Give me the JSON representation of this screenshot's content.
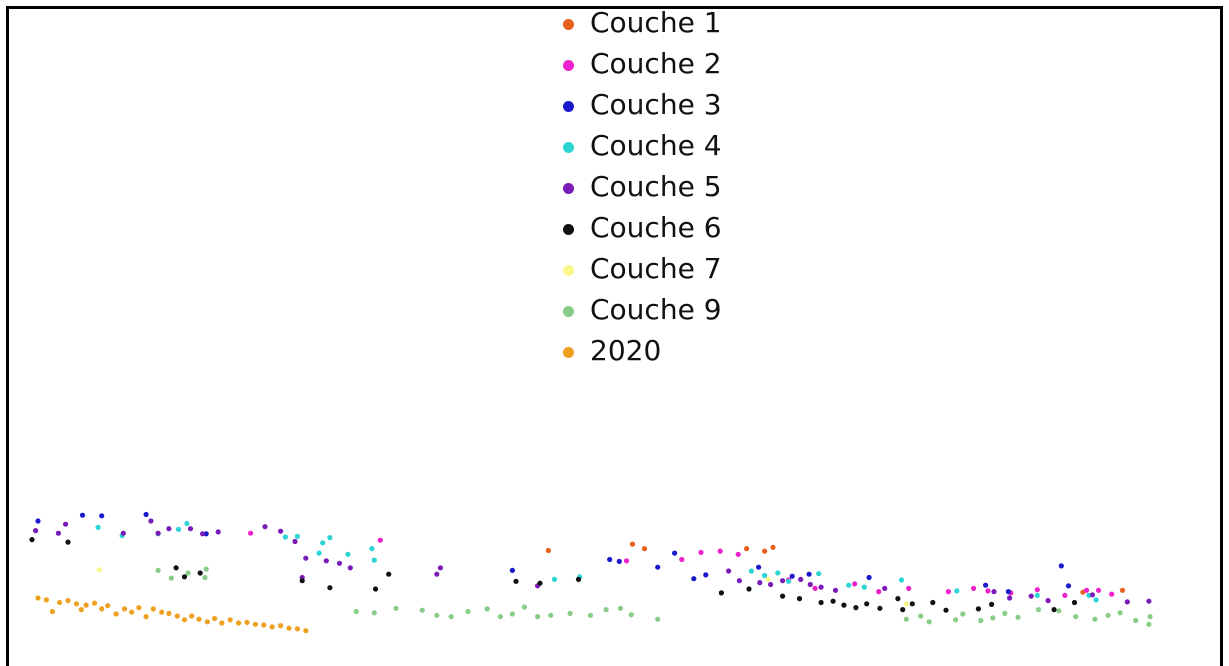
{
  "chart_data": {
    "type": "scatter",
    "title": "",
    "xlabel": "",
    "ylabel": "",
    "grid": false,
    "axes_visible": false,
    "legend_placement": "top-center",
    "x_range": [
      0,
      100
    ],
    "y_range": [
      0,
      100
    ],
    "series": [
      {
        "name": "Couche 1",
        "color": "#E8601C",
        "points": [
          [
            44.5,
            15.5
          ],
          [
            51.5,
            16.5
          ],
          [
            52.5,
            15.8
          ],
          [
            61,
            15.8
          ],
          [
            62.5,
            15.4
          ],
          [
            63.2,
            16.0
          ],
          [
            89.0,
            9.0
          ],
          [
            92.3,
            9.3
          ]
        ]
      },
      {
        "name": "Couche 2",
        "color": "#EE22CC",
        "points": [
          [
            19.7,
            18.2
          ],
          [
            30.5,
            17.1
          ],
          [
            51.0,
            13.9
          ],
          [
            55.6,
            14.1
          ],
          [
            57.2,
            15.2
          ],
          [
            58.8,
            15.4
          ],
          [
            60.3,
            14.9
          ],
          [
            64.5,
            10.9
          ],
          [
            66.7,
            9.6
          ],
          [
            70.0,
            10.3
          ],
          [
            72.0,
            9.1
          ],
          [
            74.5,
            9.6
          ],
          [
            77.8,
            9.1
          ],
          [
            79.9,
            9.6
          ],
          [
            81.1,
            9.2
          ],
          [
            83.0,
            8.9
          ],
          [
            85.2,
            9.4
          ],
          [
            87.5,
            8.5
          ],
          [
            89.3,
            9.3
          ],
          [
            90.3,
            9.3
          ],
          [
            91.4,
            8.7
          ]
        ]
      },
      {
        "name": "Couche 3",
        "color": "#1A1ACC",
        "points": [
          [
            2.0,
            20.1
          ],
          [
            5.7,
            21.0
          ],
          [
            7.3,
            20.9
          ],
          [
            11.0,
            21.1
          ],
          [
            16.0,
            18.1
          ],
          [
            41.5,
            12.4
          ],
          [
            49.6,
            14.1
          ],
          [
            50.4,
            13.8
          ],
          [
            53.6,
            12.9
          ],
          [
            55.0,
            15.1
          ],
          [
            56.6,
            11.1
          ],
          [
            57.6,
            11.7
          ],
          [
            62.0,
            12.9
          ],
          [
            64.8,
            11.5
          ],
          [
            66.2,
            11.8
          ],
          [
            71.2,
            11.3
          ],
          [
            80.9,
            10.1
          ],
          [
            82.8,
            9.1
          ],
          [
            87.2,
            13.1
          ],
          [
            87.8,
            10.0
          ]
        ]
      },
      {
        "name": "Couche 4",
        "color": "#2DD4D4",
        "points": [
          [
            7.0,
            19.1
          ],
          [
            9.0,
            17.8
          ],
          [
            12.0,
            18.1
          ],
          [
            13.7,
            18.8
          ],
          [
            14.4,
            19.7
          ],
          [
            22.6,
            17.6
          ],
          [
            23.6,
            17.7
          ],
          [
            25.7,
            16.7
          ],
          [
            26.3,
            17.5
          ],
          [
            25.4,
            15.1
          ],
          [
            27.8,
            14.9
          ],
          [
            29.8,
            15.8
          ],
          [
            30.0,
            14.0
          ],
          [
            45.0,
            11.0
          ],
          [
            47.1,
            11.4
          ],
          [
            61.4,
            12.3
          ],
          [
            62.5,
            11.6
          ],
          [
            63.6,
            12.0
          ],
          [
            64.5,
            10.7
          ],
          [
            67.0,
            11.9
          ],
          [
            69.5,
            10.1
          ],
          [
            70.8,
            9.8
          ],
          [
            73.9,
            10.9
          ],
          [
            78.5,
            9.2
          ],
          [
            85.2,
            8.5
          ],
          [
            89.5,
            8.5
          ],
          [
            90.1,
            7.8
          ]
        ]
      },
      {
        "name": "Couche 5",
        "color": "#7A1AB8",
        "points": [
          [
            1.8,
            18.6
          ],
          [
            3.7,
            18.2
          ],
          [
            4.3,
            19.6
          ],
          [
            9.1,
            18.2
          ],
          [
            11.4,
            20.1
          ],
          [
            12.0,
            18.2
          ],
          [
            12.9,
            18.9
          ],
          [
            14.7,
            18.9
          ],
          [
            15.7,
            18.1
          ],
          [
            17.0,
            18.4
          ],
          [
            20.9,
            19.2
          ],
          [
            22.2,
            18.5
          ],
          [
            23.4,
            16.9
          ],
          [
            24.3,
            14.3
          ],
          [
            26.0,
            13.9
          ],
          [
            27.1,
            13.5
          ],
          [
            28.0,
            12.8
          ],
          [
            24.0,
            11.3
          ],
          [
            35.2,
            11.8
          ],
          [
            35.5,
            12.8
          ],
          [
            43.6,
            10.0
          ],
          [
            59.5,
            12.3
          ],
          [
            60.4,
            10.8
          ],
          [
            62.1,
            10.5
          ],
          [
            63.0,
            10.2
          ],
          [
            64.0,
            10.8
          ],
          [
            65.5,
            11.0
          ],
          [
            66.3,
            10.2
          ],
          [
            67.2,
            9.8
          ],
          [
            68.4,
            9.3
          ],
          [
            72.5,
            9.6
          ],
          [
            81.6,
            9.1
          ],
          [
            82.9,
            8.1
          ],
          [
            84.7,
            8.4
          ],
          [
            86.1,
            7.7
          ],
          [
            89.8,
            8.6
          ],
          [
            92.7,
            7.5
          ],
          [
            94.5,
            7.6
          ]
        ]
      },
      {
        "name": "Couche 6",
        "color": "#111111",
        "points": [
          [
            1.5,
            17.2
          ],
          [
            4.5,
            16.8
          ],
          [
            13.5,
            12.8
          ],
          [
            14.2,
            11.4
          ],
          [
            15.5,
            12.0
          ],
          [
            24.0,
            10.8
          ],
          [
            26.3,
            9.7
          ],
          [
            30.1,
            9.5
          ],
          [
            31.2,
            11.8
          ],
          [
            41.8,
            10.7
          ],
          [
            43.8,
            10.4
          ],
          [
            47.0,
            11.0
          ],
          [
            58.9,
            8.9
          ],
          [
            61.2,
            9.5
          ],
          [
            64.0,
            8.4
          ],
          [
            65.4,
            8.0
          ],
          [
            67.2,
            7.4
          ],
          [
            68.2,
            7.6
          ],
          [
            69.1,
            7.0
          ],
          [
            70.1,
            6.6
          ],
          [
            71.0,
            7.2
          ],
          [
            72.1,
            6.5
          ],
          [
            73.6,
            8.0
          ],
          [
            74.0,
            6.3
          ],
          [
            74.8,
            7.2
          ],
          [
            76.5,
            7.4
          ],
          [
            77.6,
            6.2
          ],
          [
            80.3,
            6.4
          ],
          [
            81.4,
            7.1
          ],
          [
            86.6,
            6.3
          ],
          [
            88.3,
            7.4
          ]
        ]
      },
      {
        "name": "Couche 7",
        "color": "#F7F78A",
        "points": [
          [
            7.1,
            12.5
          ],
          [
            62.8,
            11.0
          ],
          [
            74.3,
            7.2
          ]
        ]
      },
      {
        "name": "Couche 9",
        "color": "#88CC88",
        "points": [
          [
            12.0,
            12.4
          ],
          [
            13.1,
            11.2
          ],
          [
            14.5,
            12.0
          ],
          [
            15.9,
            11.3
          ],
          [
            16.0,
            12.6
          ],
          [
            28.5,
            6.0
          ],
          [
            30.0,
            5.8
          ],
          [
            31.8,
            6.5
          ],
          [
            34.0,
            6.2
          ],
          [
            35.2,
            5.4
          ],
          [
            36.4,
            5.2
          ],
          [
            37.8,
            6.0
          ],
          [
            39.4,
            6.4
          ],
          [
            40.5,
            5.2
          ],
          [
            41.5,
            5.6
          ],
          [
            42.5,
            6.7
          ],
          [
            43.6,
            5.2
          ],
          [
            44.7,
            5.4
          ],
          [
            46.3,
            5.7
          ],
          [
            48.0,
            5.4
          ],
          [
            49.3,
            6.3
          ],
          [
            50.5,
            6.5
          ],
          [
            51.4,
            5.5
          ],
          [
            53.6,
            4.8
          ],
          [
            74.3,
            4.8
          ],
          [
            75.5,
            5.3
          ],
          [
            76.2,
            4.4
          ],
          [
            78.4,
            4.7
          ],
          [
            79.0,
            5.6
          ],
          [
            80.5,
            4.6
          ],
          [
            81.5,
            5.0
          ],
          [
            82.5,
            5.7
          ],
          [
            83.6,
            5.1
          ],
          [
            85.3,
            6.3
          ],
          [
            87.0,
            6.1
          ],
          [
            88.4,
            5.2
          ],
          [
            90.0,
            4.8
          ],
          [
            91.1,
            5.4
          ],
          [
            92.1,
            5.8
          ],
          [
            93.4,
            4.6
          ],
          [
            94.5,
            4.0
          ],
          [
            94.6,
            5.2
          ]
        ]
      },
      {
        "name": "2020",
        "color": "#F0A020",
        "points": [
          [
            2.0,
            8.1
          ],
          [
            2.7,
            7.8
          ],
          [
            3.2,
            6.0
          ],
          [
            3.8,
            7.4
          ],
          [
            4.5,
            7.7
          ],
          [
            5.2,
            7.2
          ],
          [
            5.6,
            6.3
          ],
          [
            6.0,
            7.0
          ],
          [
            6.7,
            7.3
          ],
          [
            7.3,
            6.4
          ],
          [
            7.8,
            6.9
          ],
          [
            8.5,
            5.6
          ],
          [
            9.2,
            6.4
          ],
          [
            9.8,
            5.9
          ],
          [
            10.4,
            6.6
          ],
          [
            11.0,
            5.2
          ],
          [
            11.6,
            6.4
          ],
          [
            12.3,
            5.9
          ],
          [
            12.9,
            5.7
          ],
          [
            13.6,
            5.3
          ],
          [
            14.2,
            4.7
          ],
          [
            14.8,
            5.3
          ],
          [
            15.4,
            4.8
          ],
          [
            16.1,
            4.4
          ],
          [
            16.7,
            4.9
          ],
          [
            17.3,
            4.2
          ],
          [
            18.0,
            4.7
          ],
          [
            18.7,
            4.2
          ],
          [
            19.4,
            4.3
          ],
          [
            20.1,
            4.0
          ],
          [
            20.8,
            3.9
          ],
          [
            21.5,
            3.6
          ],
          [
            22.2,
            3.8
          ],
          [
            22.9,
            3.4
          ],
          [
            23.6,
            3.3
          ],
          [
            24.3,
            3.0
          ]
        ]
      }
    ]
  }
}
